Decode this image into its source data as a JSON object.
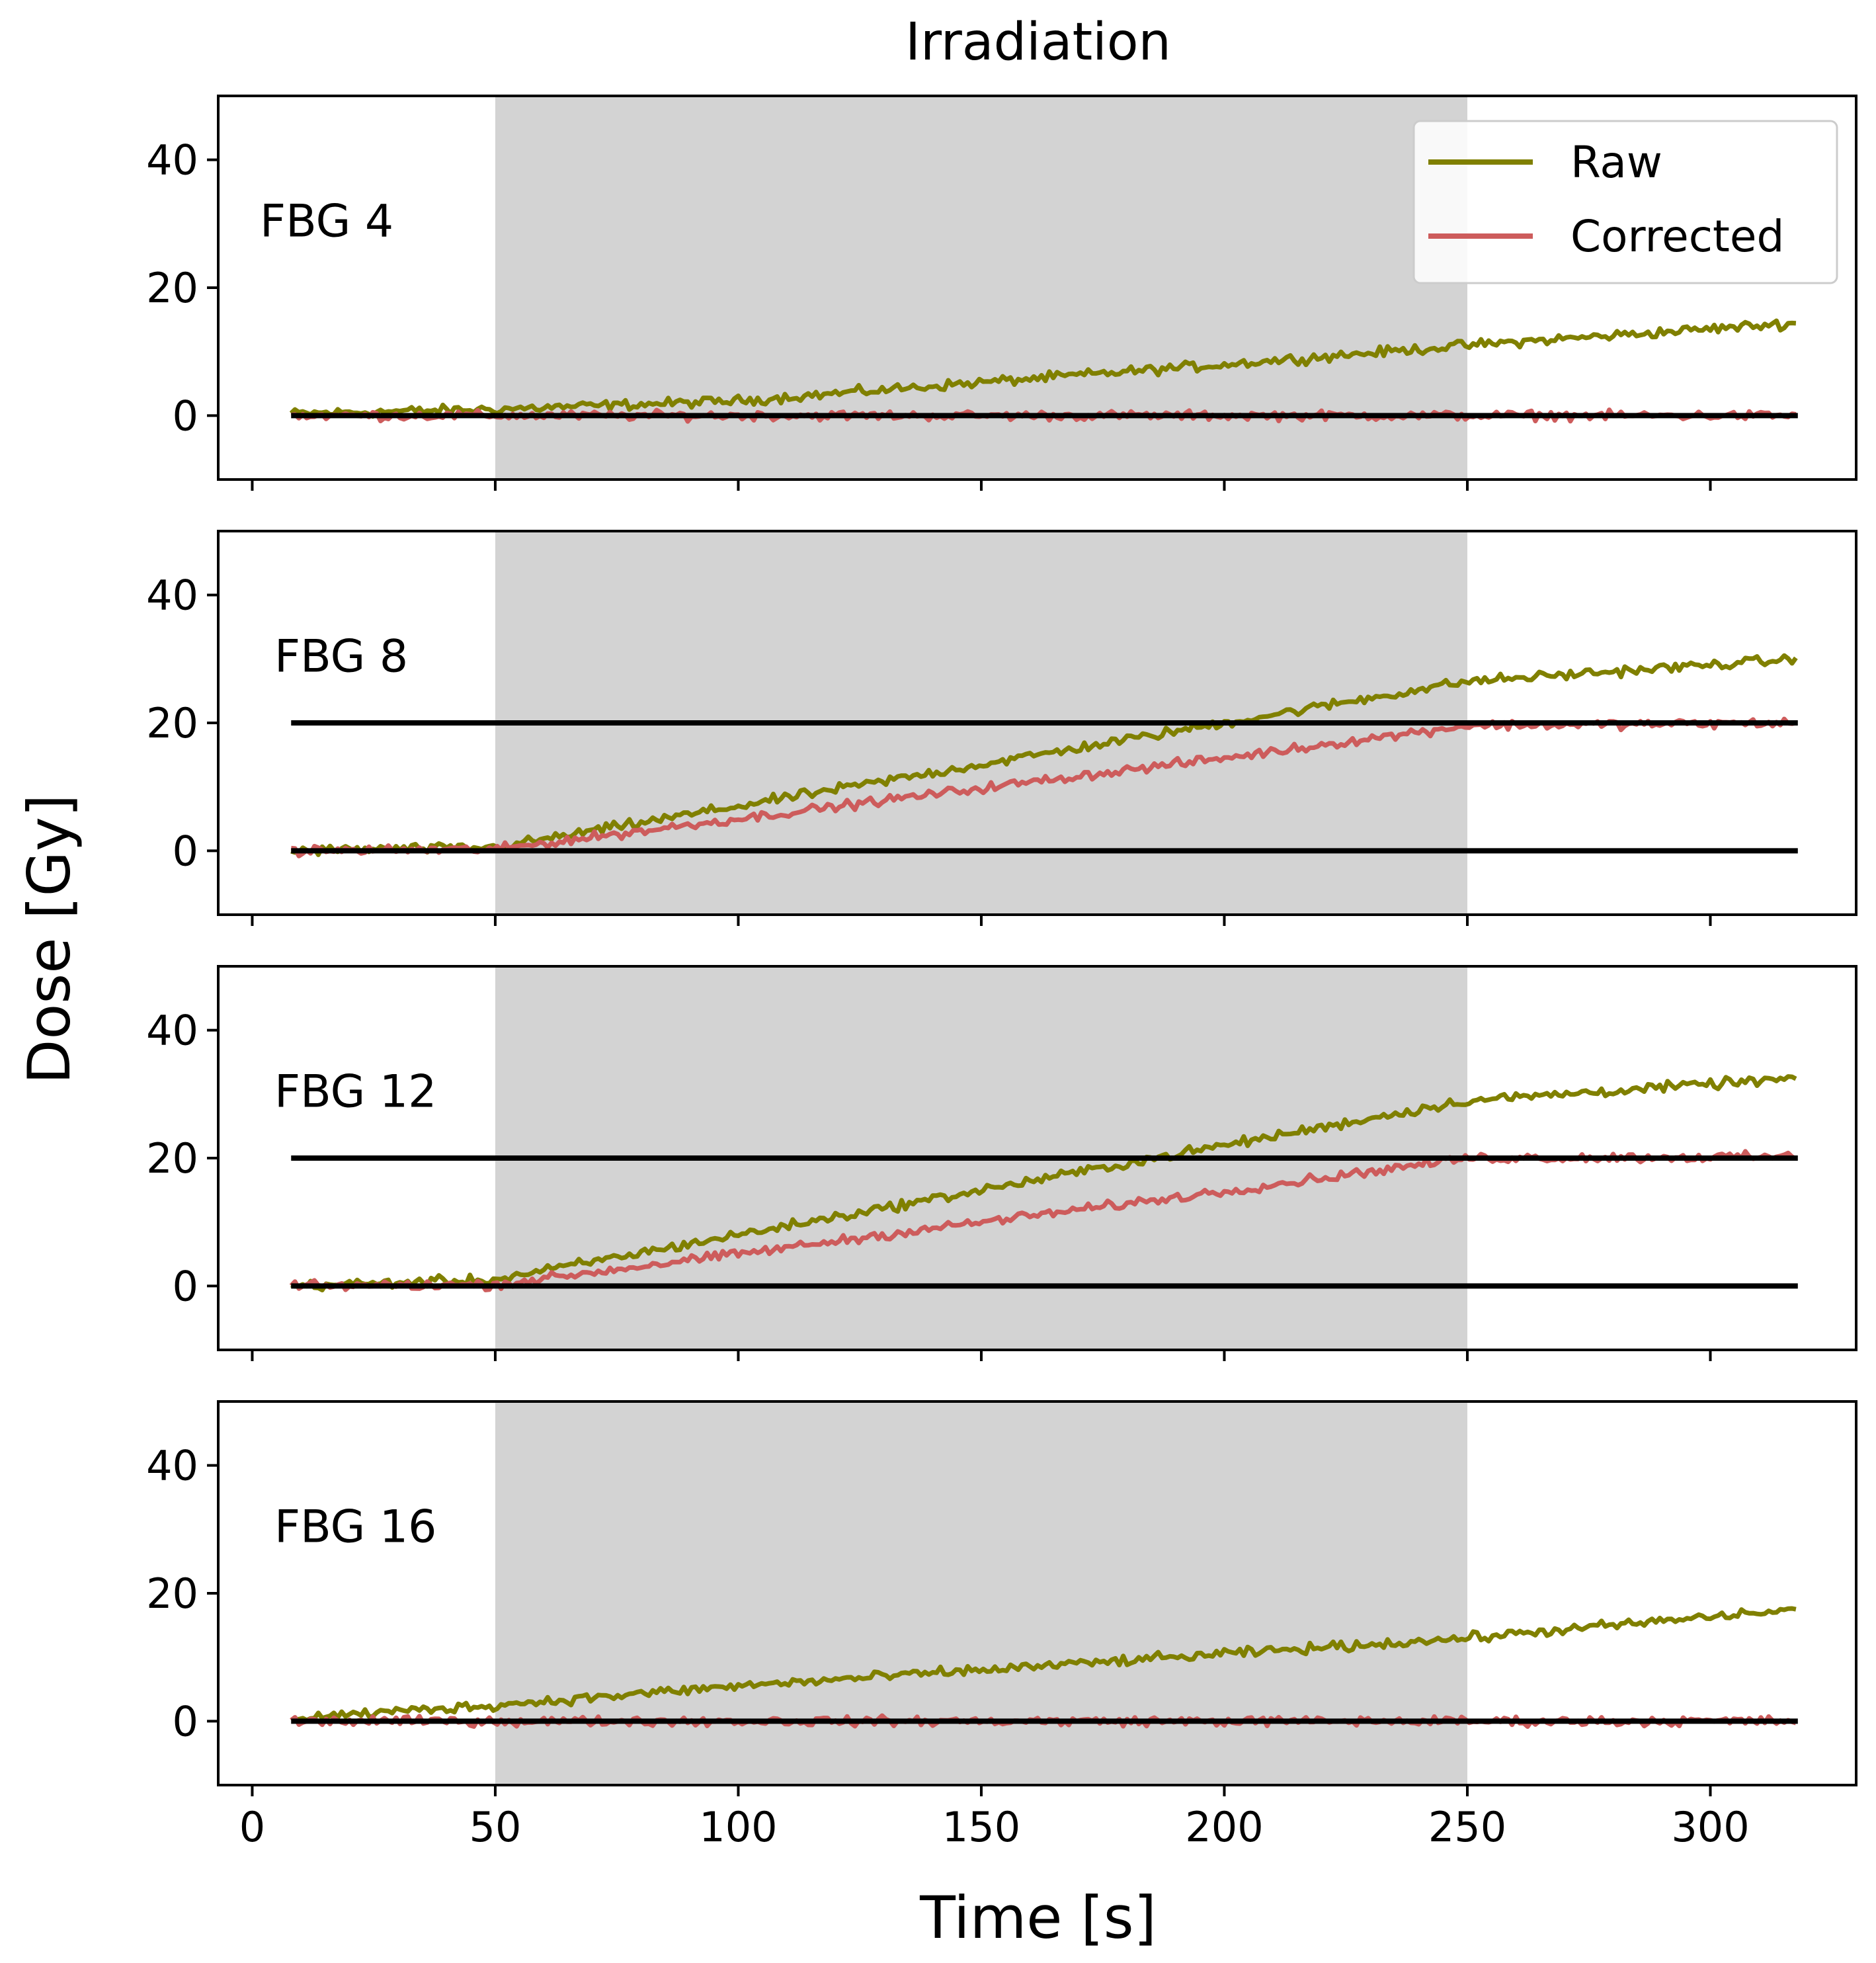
{
  "chart_data": {
    "type": "line",
    "title": "Irradiation",
    "xlabel": "Time [s]",
    "ylabel": "Dose [Gy]",
    "xlim": [
      -7,
      330
    ],
    "ylim": [
      -10,
      50
    ],
    "xticks": [
      0,
      50,
      100,
      150,
      200,
      250,
      300
    ],
    "yticks": [
      0,
      20,
      40
    ],
    "irradiation_window": [
      50,
      250
    ],
    "legend": {
      "placement": "top-right",
      "entries": [
        "Raw",
        "Corrected"
      ]
    },
    "colors": {
      "raw": "#808000",
      "corrected": "#cd5c5c",
      "reference": "#000000",
      "shade": "#d3d3d3"
    },
    "time_range": [
      8,
      318
    ],
    "panels": [
      {
        "label": "FBG 4",
        "reference_lines": [
          0
        ],
        "series": [
          {
            "name": "Raw",
            "x": [
              8,
              50,
              100,
              150,
              200,
              250,
              318
            ],
            "y": [
              0.3,
              1.0,
              2.3,
              5.2,
              8.0,
              11.0,
              14.5
            ]
          },
          {
            "name": "Corrected",
            "x": [
              8,
              318
            ],
            "y": [
              0,
              0
            ]
          }
        ]
      },
      {
        "label": "FBG 8",
        "reference_lines": [
          0,
          20
        ],
        "series": [
          {
            "name": "Raw",
            "x": [
              8,
              50,
              100,
              150,
              200,
              250,
              318
            ],
            "y": [
              0,
              0.5,
              7.0,
              13.5,
              20.0,
              26.5,
              30.0
            ]
          },
          {
            "name": "Corrected",
            "x": [
              8,
              50,
              100,
              150,
              200,
              250,
              318
            ],
            "y": [
              0,
              0.2,
              5.0,
              9.8,
              14.5,
              19.6,
              20.0
            ]
          }
        ]
      },
      {
        "label": "FBG 12",
        "reference_lines": [
          0,
          20
        ],
        "series": [
          {
            "name": "Raw",
            "x": [
              8,
              50,
              100,
              150,
              200,
              250,
              318
            ],
            "y": [
              0,
              1.0,
              8.0,
              15.0,
              22.0,
              29.0,
              32.5
            ]
          },
          {
            "name": "Corrected",
            "x": [
              8,
              50,
              100,
              150,
              200,
              250,
              318
            ],
            "y": [
              0,
              0.2,
              5.0,
              10.0,
              14.8,
              20.0,
              20.2
            ]
          }
        ]
      },
      {
        "label": "FBG 16",
        "reference_lines": [
          0
        ],
        "series": [
          {
            "name": "Raw",
            "x": [
              8,
              50,
              100,
              150,
              200,
              250,
              318
            ],
            "y": [
              0.5,
              2.5,
              5.5,
              8.0,
              10.5,
              13.0,
              17.5
            ]
          },
          {
            "name": "Corrected",
            "x": [
              8,
              318
            ],
            "y": [
              0,
              0
            ]
          }
        ]
      }
    ]
  }
}
